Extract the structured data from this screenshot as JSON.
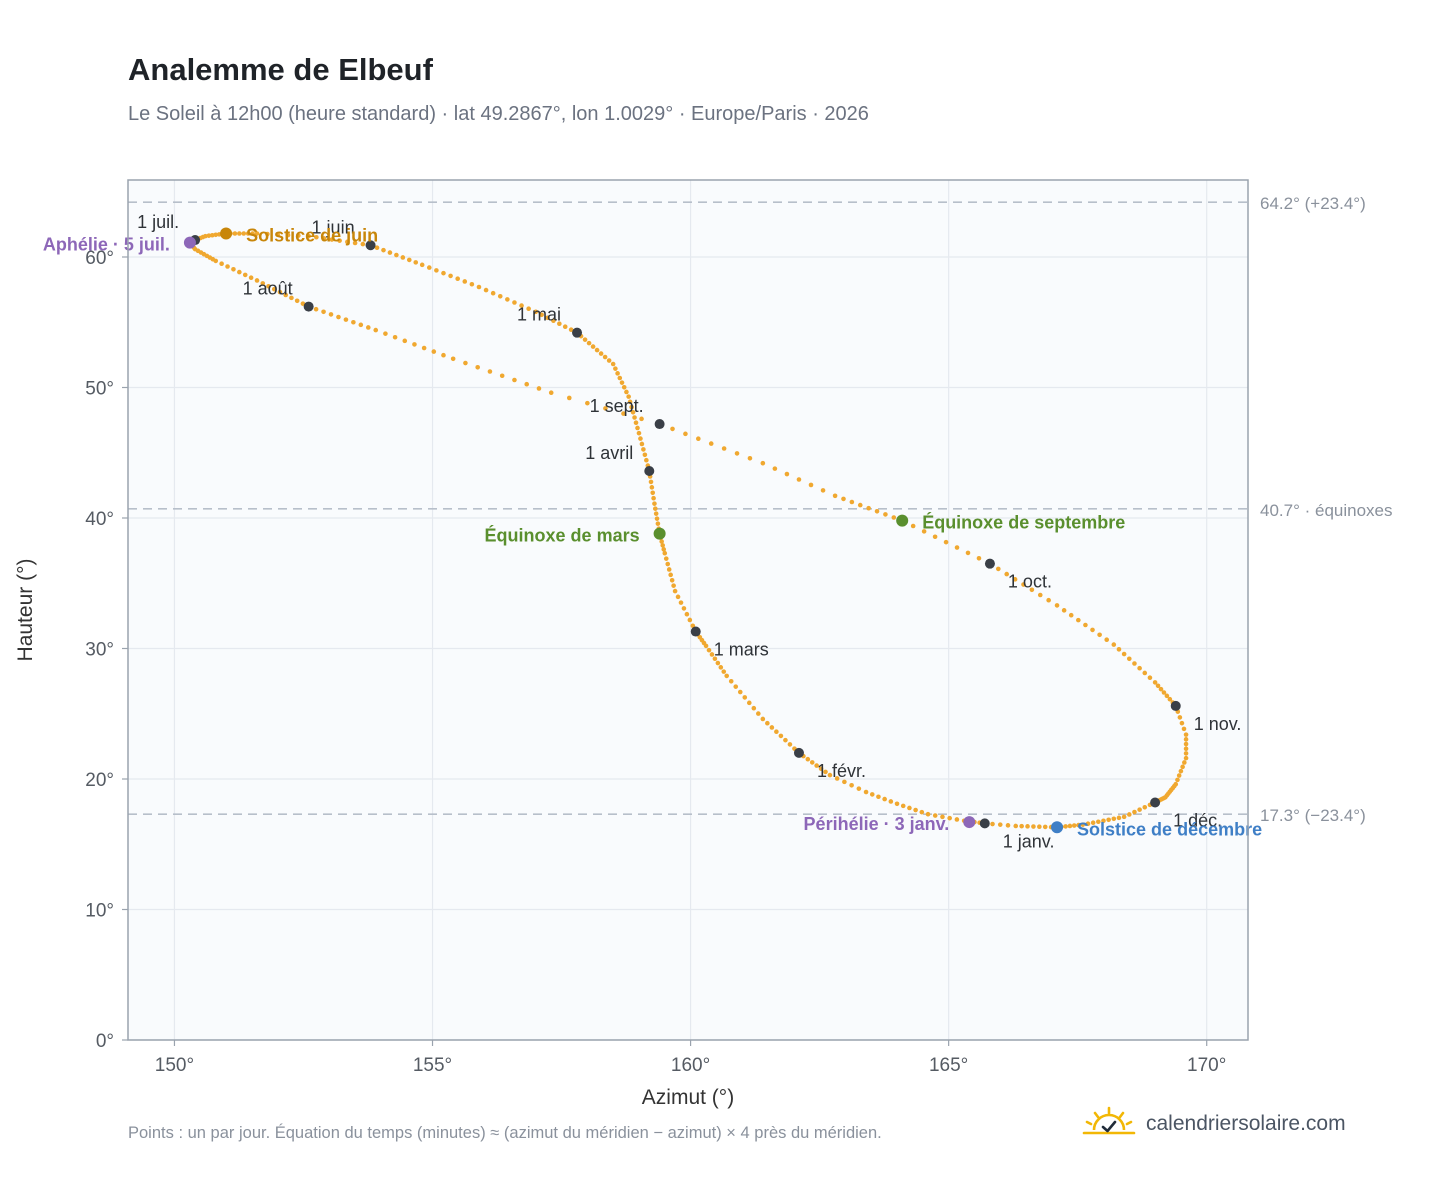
{
  "title": "Analemme de Elbeuf",
  "subtitle": "Le Soleil à 12h00 (heure standard) · lat 49.2867°, lon 1.0029° · Europe/Paris · 2026",
  "footnote": "Points : un par jour. Équation du temps (minutes) ≈ (azimut du méridien − azimut) × 4 près du méridien.",
  "brand": {
    "text": "calendriersolaire.com",
    "icon": "sun-check-icon"
  },
  "colors": {
    "curve": "#f0a830",
    "month_marker": "#3a3f47",
    "solstice_june": "#c8860a",
    "solstice_december": "#3f7fc6",
    "equinox": "#5a8f2e",
    "apsis": "#8d67b8",
    "reference_line": "#b7bfca",
    "plot_background": "#f9fbfd",
    "grid": "#e5e9ef"
  },
  "chart_data": {
    "type": "scatter",
    "xlabel": "Azimut (°)",
    "ylabel": "Hauteur (°)",
    "xlim": [
      149.1,
      170.8
    ],
    "ylim": [
      0,
      65.9
    ],
    "x_ticks": [
      150,
      155,
      160,
      165,
      170
    ],
    "x_tick_labels": [
      "150°",
      "155°",
      "160°",
      "165°",
      "170°"
    ],
    "y_ticks": [
      0,
      10,
      20,
      30,
      40,
      50,
      60
    ],
    "y_tick_labels": [
      "0°",
      "10°",
      "20°",
      "30°",
      "40°",
      "50°",
      "60°"
    ],
    "grid": true,
    "reference_lines": [
      {
        "y": 64.2,
        "label": "64.2° (+23.4°)"
      },
      {
        "y": 40.7,
        "label": "40.7° · équinoxes"
      },
      {
        "y": 17.3,
        "label": "17.3° (−23.4°)"
      }
    ],
    "month_markers": [
      {
        "label": "1 janv.",
        "x": 165.7,
        "y": 16.6,
        "anchor": "start",
        "dx": 18,
        "dy": 24
      },
      {
        "label": "1 févr.",
        "x": 162.1,
        "y": 22.0,
        "anchor": "start",
        "dx": 18,
        "dy": 24
      },
      {
        "label": "1 mars",
        "x": 160.1,
        "y": 31.3,
        "anchor": "start",
        "dx": 18,
        "dy": 24
      },
      {
        "label": "1 avril",
        "x": 159.2,
        "y": 43.6,
        "anchor": "end",
        "dx": -16,
        "dy": -12
      },
      {
        "label": "1 mai",
        "x": 157.8,
        "y": 54.2,
        "anchor": "end",
        "dx": -16,
        "dy": -12
      },
      {
        "label": "1 juin",
        "x": 153.8,
        "y": 60.9,
        "anchor": "end",
        "dx": -16,
        "dy": -12
      },
      {
        "label": "1 juil.",
        "x": 150.4,
        "y": 61.3,
        "anchor": "end",
        "dx": -16,
        "dy": -12
      },
      {
        "label": "1 août",
        "x": 152.6,
        "y": 56.2,
        "anchor": "end",
        "dx": -16,
        "dy": -12
      },
      {
        "label": "1 sept.",
        "x": 159.4,
        "y": 47.2,
        "anchor": "end",
        "dx": -16,
        "dy": -12
      },
      {
        "label": "1 oct.",
        "x": 165.8,
        "y": 36.5,
        "anchor": "start",
        "dx": 18,
        "dy": 24
      },
      {
        "label": "1 nov.",
        "x": 169.4,
        "y": 25.6,
        "anchor": "start",
        "dx": 18,
        "dy": 24
      },
      {
        "label": "1 déc.",
        "x": 169.0,
        "y": 18.2,
        "anchor": "start",
        "dx": 18,
        "dy": 24
      }
    ],
    "events": [
      {
        "label": "Solstice de juin",
        "x": 151.0,
        "y": 61.8,
        "color": "#c8860a",
        "anchor": "start",
        "dx": 20,
        "dy": 8
      },
      {
        "label": "Aphélie · 5 juil.",
        "x": 150.3,
        "y": 61.1,
        "color": "#8d67b8",
        "anchor": "end",
        "dx": -20,
        "dy": 8
      },
      {
        "label": "Équinoxe de mars",
        "x": 159.4,
        "y": 38.8,
        "color": "#5a8f2e",
        "anchor": "end",
        "dx": -20,
        "dy": 8
      },
      {
        "label": "Équinoxe de septembre",
        "x": 164.1,
        "y": 39.8,
        "color": "#5a8f2e",
        "anchor": "start",
        "dx": 20,
        "dy": 8
      },
      {
        "label": "Périhélie · 3 janv.",
        "x": 165.4,
        "y": 16.7,
        "color": "#8d67b8",
        "anchor": "end",
        "dx": -20,
        "dy": 8
      },
      {
        "label": "Solstice de décembre",
        "x": 167.1,
        "y": 16.3,
        "color": "#3f7fc6",
        "anchor": "start",
        "dx": 20,
        "dy": 8
      }
    ],
    "curve_anchors": [
      [
        1,
        165.7,
        16.6
      ],
      [
        5,
        165.3,
        16.8
      ],
      [
        10,
        164.6,
        17.3
      ],
      [
        15,
        164.0,
        18.1
      ],
      [
        20,
        163.4,
        19.0
      ],
      [
        25,
        162.7,
        20.3
      ],
      [
        32,
        162.1,
        22.0
      ],
      [
        40,
        161.4,
        24.6
      ],
      [
        48,
        160.7,
        27.9
      ],
      [
        55,
        160.3,
        30.2
      ],
      [
        60,
        160.1,
        31.3
      ],
      [
        67,
        159.7,
        34.4
      ],
      [
        74,
        159.5,
        37.3
      ],
      [
        79,
        159.4,
        38.8
      ],
      [
        85,
        159.3,
        41.1
      ],
      [
        91,
        159.2,
        43.6
      ],
      [
        98,
        159.0,
        46.5
      ],
      [
        105,
        158.8,
        49.3
      ],
      [
        112,
        158.5,
        51.8
      ],
      [
        121,
        157.8,
        54.2
      ],
      [
        128,
        157.0,
        55.8
      ],
      [
        136,
        155.9,
        57.7
      ],
      [
        144,
        154.8,
        59.4
      ],
      [
        152,
        153.8,
        60.9
      ],
      [
        160,
        152.6,
        61.6
      ],
      [
        165,
        151.6,
        61.8
      ],
      [
        172,
        151.0,
        61.8
      ],
      [
        178,
        150.6,
        61.6
      ],
      [
        182,
        150.4,
        61.3
      ],
      [
        186,
        150.3,
        61.1
      ],
      [
        190,
        150.4,
        60.6
      ],
      [
        197,
        150.8,
        59.7
      ],
      [
        204,
        151.6,
        58.2
      ],
      [
        213,
        152.6,
        56.2
      ],
      [
        222,
        153.9,
        54.4
      ],
      [
        230,
        155.4,
        52.2
      ],
      [
        238,
        157.3,
        49.6
      ],
      [
        244,
        159.4,
        47.2
      ],
      [
        252,
        161.4,
        44.2
      ],
      [
        258,
        162.8,
        41.7
      ],
      [
        266,
        164.1,
        39.8
      ],
      [
        274,
        165.8,
        36.5
      ],
      [
        282,
        167.1,
        33.3
      ],
      [
        290,
        168.2,
        30.3
      ],
      [
        298,
        169.0,
        27.4
      ],
      [
        305,
        169.4,
        25.6
      ],
      [
        310,
        169.6,
        23.4
      ],
      [
        315,
        169.6,
        21.6
      ],
      [
        321,
        169.4,
        19.6
      ],
      [
        328,
        169.2,
        18.6
      ],
      [
        335,
        169.0,
        18.2
      ],
      [
        341,
        168.4,
        17.1
      ],
      [
        349,
        167.6,
        16.5
      ],
      [
        355,
        167.1,
        16.3
      ],
      [
        362,
        166.3,
        16.4
      ],
      [
        366,
        165.7,
        16.6
      ]
    ]
  }
}
